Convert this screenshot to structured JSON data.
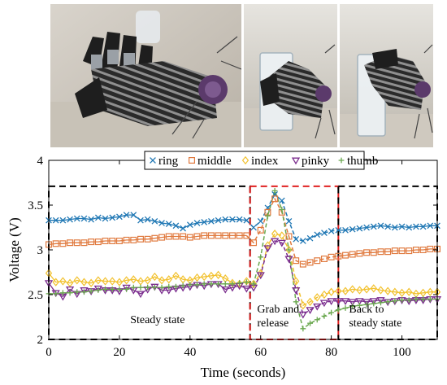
{
  "photos": [
    {
      "subject": "gloved hand with sensors"
    },
    {
      "subject": "gloved hand grasping glass"
    },
    {
      "subject": "gloved hand releasing glass"
    }
  ],
  "chart_data": {
    "type": "line",
    "title": "",
    "xlabel": "Time (seconds)",
    "ylabel": "Voltage (V)",
    "xlim": [
      0,
      110
    ],
    "ylim": [
      2,
      4
    ],
    "xticks": [
      0,
      20,
      40,
      60,
      80,
      100
    ],
    "yticks": [
      2,
      2.5,
      3,
      3.5,
      4
    ],
    "grid": false,
    "legend_position": "top",
    "x": [
      0,
      2,
      4,
      6,
      8,
      10,
      12,
      14,
      16,
      18,
      20,
      22,
      24,
      26,
      28,
      30,
      32,
      34,
      36,
      38,
      40,
      42,
      44,
      46,
      48,
      50,
      52,
      54,
      56,
      58,
      60,
      62,
      64,
      66,
      68,
      70,
      72,
      74,
      76,
      78,
      80,
      82,
      84,
      86,
      88,
      90,
      92,
      94,
      96,
      98,
      100,
      102,
      104,
      106,
      108,
      110
    ],
    "series": [
      {
        "name": "ring",
        "marker": "x",
        "color": "#1f77b4",
        "values": [
          3.33,
          3.33,
          3.33,
          3.34,
          3.35,
          3.35,
          3.34,
          3.36,
          3.35,
          3.36,
          3.37,
          3.39,
          3.39,
          3.33,
          3.34,
          3.32,
          3.3,
          3.29,
          3.27,
          3.24,
          3.28,
          3.3,
          3.31,
          3.32,
          3.33,
          3.34,
          3.34,
          3.34,
          3.33,
          3.25,
          3.32,
          3.47,
          3.62,
          3.55,
          3.32,
          3.12,
          3.1,
          3.13,
          3.17,
          3.19,
          3.21,
          3.22,
          3.22,
          3.23,
          3.24,
          3.25,
          3.26,
          3.27,
          3.26,
          3.25,
          3.26,
          3.25,
          3.26,
          3.26,
          3.27,
          3.27
        ]
      },
      {
        "name": "middle",
        "marker": "square",
        "color": "#e07a3f",
        "values": [
          3.06,
          3.07,
          3.07,
          3.08,
          3.08,
          3.08,
          3.09,
          3.09,
          3.1,
          3.1,
          3.1,
          3.11,
          3.11,
          3.12,
          3.12,
          3.13,
          3.14,
          3.15,
          3.15,
          3.15,
          3.14,
          3.15,
          3.16,
          3.16,
          3.16,
          3.16,
          3.16,
          3.16,
          3.16,
          3.08,
          3.22,
          3.42,
          3.57,
          3.42,
          3.15,
          2.88,
          2.84,
          2.86,
          2.88,
          2.9,
          2.92,
          2.93,
          2.94,
          2.95,
          2.96,
          2.97,
          2.97,
          2.98,
          2.98,
          2.99,
          2.99,
          2.99,
          3.0,
          3.0,
          3.01,
          3.01
        ]
      },
      {
        "name": "index",
        "marker": "diamond",
        "color": "#f2c12e",
        "values": [
          2.74,
          2.64,
          2.65,
          2.63,
          2.66,
          2.64,
          2.63,
          2.66,
          2.65,
          2.65,
          2.64,
          2.66,
          2.67,
          2.65,
          2.66,
          2.7,
          2.66,
          2.67,
          2.71,
          2.67,
          2.66,
          2.69,
          2.7,
          2.71,
          2.72,
          2.68,
          2.63,
          2.62,
          2.65,
          2.62,
          2.74,
          3.05,
          3.18,
          3.16,
          3.0,
          2.65,
          2.38,
          2.42,
          2.47,
          2.5,
          2.53,
          2.54,
          2.54,
          2.56,
          2.55,
          2.56,
          2.57,
          2.55,
          2.54,
          2.53,
          2.52,
          2.53,
          2.51,
          2.52,
          2.53,
          2.53
        ]
      },
      {
        "name": "pinky",
        "marker": "triangle-down",
        "color": "#7b2d8e",
        "values": [
          2.63,
          2.52,
          2.48,
          2.56,
          2.51,
          2.55,
          2.54,
          2.57,
          2.55,
          2.55,
          2.54,
          2.58,
          2.55,
          2.51,
          2.56,
          2.59,
          2.55,
          2.55,
          2.57,
          2.58,
          2.59,
          2.61,
          2.6,
          2.62,
          2.62,
          2.56,
          2.58,
          2.6,
          2.57,
          2.58,
          2.72,
          3.02,
          3.1,
          3.08,
          2.9,
          2.55,
          2.28,
          2.33,
          2.37,
          2.41,
          2.43,
          2.43,
          2.43,
          2.42,
          2.43,
          2.42,
          2.43,
          2.44,
          2.42,
          2.43,
          2.44,
          2.43,
          2.44,
          2.44,
          2.45,
          2.45
        ]
      },
      {
        "name": "thumb",
        "marker": "plus",
        "color": "#6aa84f",
        "values": [
          2.51,
          2.51,
          2.52,
          2.52,
          2.53,
          2.53,
          2.54,
          2.55,
          2.56,
          2.56,
          2.56,
          2.56,
          2.58,
          2.58,
          2.58,
          2.58,
          2.58,
          2.59,
          2.59,
          2.6,
          2.61,
          2.61,
          2.62,
          2.62,
          2.62,
          2.62,
          2.62,
          2.63,
          2.64,
          2.62,
          2.92,
          3.38,
          3.66,
          3.45,
          3.0,
          2.42,
          2.12,
          2.18,
          2.22,
          2.26,
          2.3,
          2.33,
          2.35,
          2.37,
          2.38,
          2.39,
          2.4,
          2.41,
          2.42,
          2.43,
          2.44,
          2.44,
          2.45,
          2.45,
          2.45,
          2.45
        ]
      }
    ],
    "regions": [
      {
        "label": "Steady state",
        "x0": 0,
        "x1": 57,
        "y0": 2.0,
        "y1": 3.71,
        "color": "#000000"
      },
      {
        "label_lines": [
          "Grab and",
          "release"
        ],
        "x0": 57,
        "x1": 82,
        "y0": 2.0,
        "y1": 3.71,
        "color": "#e02020"
      },
      {
        "label_lines": [
          "Back to",
          "steady state"
        ],
        "x0": 82,
        "x1": 110,
        "y0": 2.0,
        "y1": 3.71,
        "color": "#000000"
      }
    ]
  }
}
